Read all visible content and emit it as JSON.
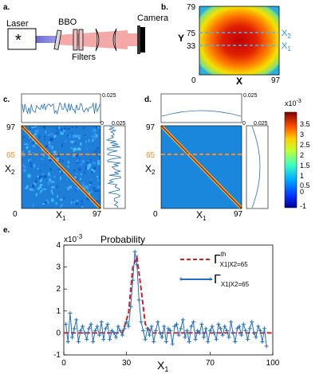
{
  "panels": {
    "a": {
      "letter": "a.",
      "laser": "Laser",
      "laser_symbol": "*",
      "bbo": "BBO",
      "filters": "Filters",
      "camera": "Camera"
    },
    "b": {
      "letter": "b.",
      "xlabel": "X",
      "ylabel": "Y",
      "x_ticks": [
        "0",
        "97"
      ],
      "y_ticks": [
        "79",
        "75",
        "33",
        "0"
      ],
      "line_labels": [
        "X",
        "X"
      ],
      "line_subscripts": [
        "2",
        "1"
      ]
    },
    "c": {
      "letter": "c.",
      "top_max": "0.025",
      "right_max": "0.025",
      "right_min": "0",
      "xlabel": "X",
      "xlabel_sub": "1",
      "ylabel": "X",
      "ylabel_sub": "2",
      "x_ticks": [
        "0",
        "97"
      ],
      "y_ticks": [
        "97",
        "65",
        "0"
      ]
    },
    "d": {
      "letter": "d.",
      "top_max": "0.025",
      "right_max": "0.025",
      "right_min": "0",
      "xlabel": "X",
      "xlabel_sub": "1",
      "ylabel": "X",
      "ylabel_sub": "2",
      "x_ticks": [
        "0",
        "97"
      ],
      "y_ticks": [
        "97",
        "65",
        "0"
      ]
    },
    "colorbar": {
      "scale": "x10",
      "scale_exp": "-3",
      "ticks": [
        "3.5",
        "3",
        "2.5",
        "2",
        "1.5",
        "1",
        "0.5",
        "0",
        "-1"
      ]
    },
    "e": {
      "letter": "e.",
      "scale": "x10",
      "scale_exp": "-3",
      "title": "Probability",
      "xlabel": "X",
      "xlabel_sub": "1",
      "legend_th_main": "Γ",
      "legend_th_sup": "th",
      "legend_th_sub": "X1|X2=65",
      "legend_exp_main": "Γ",
      "legend_exp_sub": "X1|X2=65"
    }
  },
  "colors": {
    "theory": "#dd1c1c",
    "experiment": "#1f6fc0",
    "cut_line_b": "#4ab3ff",
    "cut_line_cd": "#ff8c1a"
  },
  "chart_data": {
    "type": "line",
    "xlabel": "X1",
    "ylabel": "",
    "xlim": [
      0,
      100
    ],
    "ylim": [
      -1,
      4
    ],
    "x_ticks": [
      0,
      30,
      70,
      100
    ],
    "y_ticks": [
      -1,
      0,
      1,
      2,
      3,
      4
    ],
    "series": [
      {
        "name": "Γ th X1|X2=65",
        "style": "dashed",
        "color": "#dd1c1c",
        "x": [
          0,
          28,
          31,
          33,
          35,
          37,
          39,
          42,
          100
        ],
        "y": [
          0,
          0,
          0.9,
          3.0,
          3.45,
          2.0,
          0.4,
          0,
          0
        ]
      },
      {
        "name": "Γ X1|X2=65",
        "style": "markers",
        "color": "#1f6fc0",
        "x": [
          1,
          2,
          3,
          4,
          5,
          6,
          7,
          8,
          9,
          10,
          11,
          12,
          13,
          14,
          15,
          16,
          17,
          18,
          19,
          20,
          21,
          22,
          23,
          24,
          25,
          26,
          27,
          28,
          29,
          30,
          31,
          32,
          33,
          34,
          35,
          36,
          37,
          38,
          39,
          40,
          41,
          42,
          43,
          44,
          45,
          46,
          47,
          48,
          49,
          50,
          51,
          52,
          53,
          54,
          55,
          56,
          57,
          58,
          59,
          60,
          61,
          62,
          63,
          64,
          65,
          66,
          67,
          68,
          69,
          70,
          71,
          72,
          73,
          74,
          75,
          76,
          77,
          78,
          79,
          80,
          81,
          82,
          83,
          84,
          85,
          86,
          87,
          88,
          89,
          90,
          91,
          92,
          93,
          94,
          95,
          96,
          97
        ],
        "y": [
          0.4,
          -0.4,
          0.9,
          -0.2,
          0.2,
          0.6,
          -0.4,
          0.1,
          0.3,
          0.0,
          -0.3,
          0.2,
          0.4,
          -0.4,
          0.1,
          0.3,
          -0.1,
          0.5,
          -0.3,
          0.2,
          0.4,
          -0.3,
          0.1,
          0.0,
          -0.2,
          0.3,
          0.1,
          -0.1,
          0.2,
          0.5,
          0.3,
          1.2,
          2.4,
          3.7,
          3.1,
          1.5,
          0.5,
          0.1,
          -0.3,
          0.2,
          -0.1,
          0.3,
          -0.4,
          0.1,
          0.5,
          0.0,
          -0.2,
          0.3,
          -0.4,
          0.2,
          0.1,
          -0.5,
          0.3,
          0.4,
          -0.1,
          0.2,
          0.6,
          -0.2,
          0.1,
          -0.4,
          0.3,
          0.5,
          -0.3,
          0.1,
          0.0,
          0.4,
          -0.2,
          0.2,
          -0.4,
          0.1,
          0.3,
          0.0,
          -0.3,
          0.4,
          0.2,
          -0.1,
          0.3,
          0.1,
          -0.2,
          0.5,
          0.0,
          -0.4,
          0.2,
          0.3,
          -0.1,
          0.4,
          0.1,
          -0.3,
          0.2,
          0.5,
          0.0,
          -0.2,
          0.3,
          0.1,
          -0.4,
          0.2,
          -0.6
        ]
      }
    ]
  }
}
